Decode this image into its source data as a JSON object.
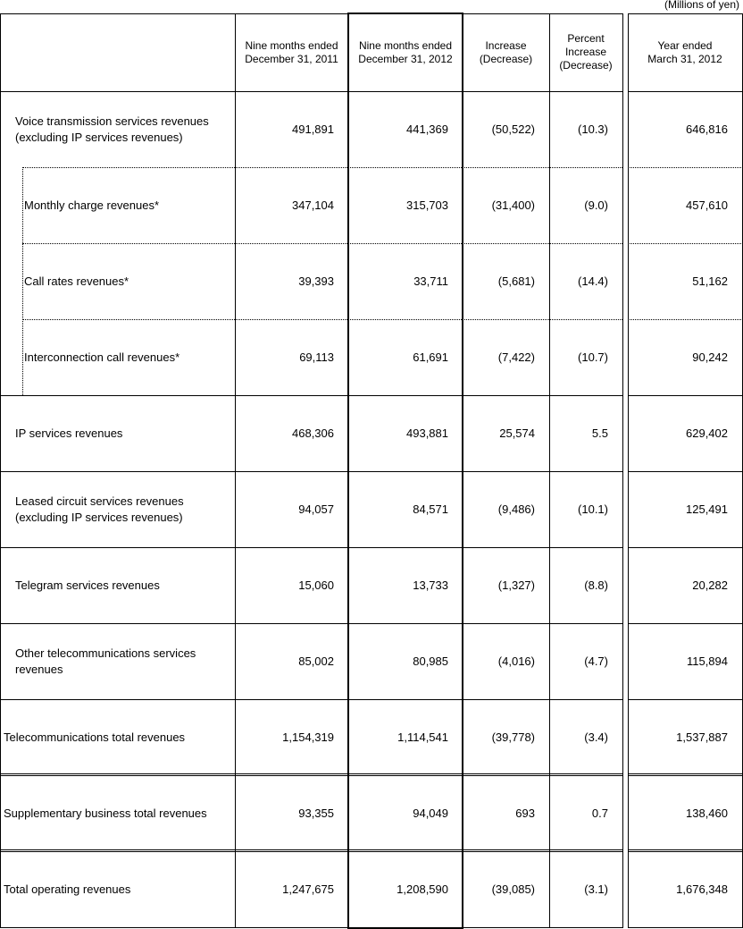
{
  "unit_note": "(Millions of yen)",
  "headers": {
    "col1": "Nine months ended\nDecember 31, 2011",
    "col2": "Nine months ended\nDecember 31, 2012",
    "col3": "Increase\n(Decrease)",
    "col4": "Percent\nIncrease\n(Decrease)",
    "col5": "Year ended\nMarch 31, 2012"
  },
  "rows": [
    {
      "label": "Voice transmission services revenues\n(excluding IP services revenues)",
      "kind": "item",
      "values": [
        "491,891",
        "441,369",
        "(50,522)",
        "(10.3)",
        "646,816"
      ]
    },
    {
      "label": "Monthly charge revenues*",
      "kind": "sub",
      "values": [
        "347,104",
        "315,703",
        "(31,400)",
        "(9.0)",
        "457,610"
      ]
    },
    {
      "label": "Call rates revenues*",
      "kind": "sub",
      "values": [
        "39,393",
        "33,711",
        "(5,681)",
        "(14.4)",
        "51,162"
      ]
    },
    {
      "label": "Interconnection call revenues*",
      "kind": "sub",
      "values": [
        "69,113",
        "61,691",
        "(7,422)",
        "(10.7)",
        "90,242"
      ]
    },
    {
      "label": "IP services revenues",
      "kind": "item",
      "values": [
        "468,306",
        "493,881",
        "25,574",
        "5.5",
        "629,402"
      ]
    },
    {
      "label": "Leased circuit services revenues\n(excluding IP services revenues)",
      "kind": "item",
      "values": [
        "94,057",
        "84,571",
        "(9,486)",
        "(10.1)",
        "125,491"
      ]
    },
    {
      "label": "Telegram services revenues",
      "kind": "item",
      "values": [
        "15,060",
        "13,733",
        "(1,327)",
        "(8.8)",
        "20,282"
      ]
    },
    {
      "label": "Other telecommunications services\nrevenues",
      "kind": "item",
      "values": [
        "85,002",
        "80,985",
        "(4,016)",
        "(4.7)",
        "115,894"
      ]
    },
    {
      "label": "Telecommunications total revenues",
      "kind": "total",
      "values": [
        "1,154,319",
        "1,114,541",
        "(39,778)",
        "(3.4)",
        "1,537,887"
      ]
    },
    {
      "label": "Supplementary business total revenues",
      "kind": "total",
      "values": [
        "93,355",
        "94,049",
        "693",
        "0.7",
        "138,460"
      ]
    },
    {
      "label": "Total operating revenues",
      "kind": "total",
      "values": [
        "1,247,675",
        "1,208,590",
        "(39,085)",
        "(3.1)",
        "1,676,348"
      ]
    }
  ]
}
